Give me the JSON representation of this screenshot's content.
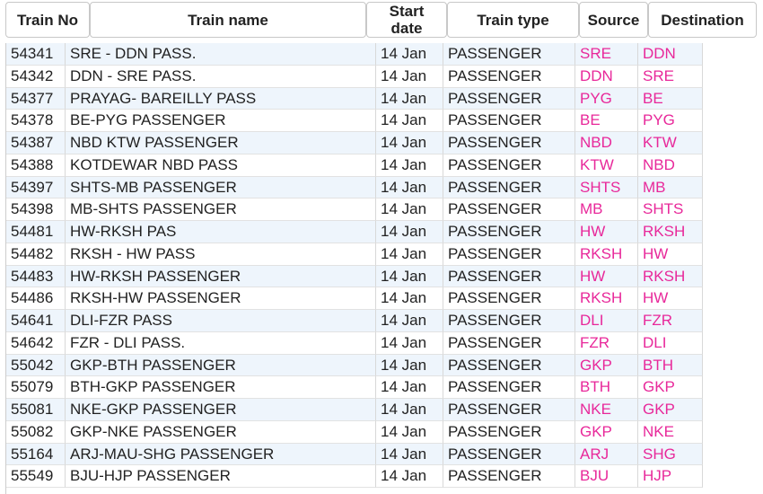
{
  "table": {
    "header": [
      "Train No",
      "Train name",
      "Start date",
      "Train type",
      "Source",
      "Destination"
    ],
    "rows": [
      [
        "54341",
        "SRE - DDN PASS.",
        "14 Jan",
        "PASSENGER",
        "SRE",
        "DDN"
      ],
      [
        "54342",
        "DDN - SRE PASS.",
        "14 Jan",
        "PASSENGER",
        "DDN",
        "SRE"
      ],
      [
        "54377",
        "PRAYAG- BAREILLY PASS",
        "14 Jan",
        "PASSENGER",
        "PYG",
        "BE"
      ],
      [
        "54378",
        "BE-PYG PASSENGER",
        "14 Jan",
        "PASSENGER",
        "BE",
        "PYG"
      ],
      [
        "54387",
        "NBD KTW PASSENGER",
        "14 Jan",
        "PASSENGER",
        "NBD",
        "KTW"
      ],
      [
        "54388",
        "KOTDEWAR NBD PASS",
        "14 Jan",
        "PASSENGER",
        "KTW",
        "NBD"
      ],
      [
        "54397",
        "SHTS-MB PASSENGER",
        "14 Jan",
        "PASSENGER",
        "SHTS",
        "MB"
      ],
      [
        "54398",
        "MB-SHTS PASSENGER",
        "14 Jan",
        "PASSENGER",
        "MB",
        "SHTS"
      ],
      [
        "54481",
        "HW-RKSH PAS",
        "14 Jan",
        "PASSENGER",
        "HW",
        "RKSH"
      ],
      [
        "54482",
        "RKSH - HW PASS",
        "14 Jan",
        "PASSENGER",
        "RKSH",
        "HW"
      ],
      [
        "54483",
        "HW-RKSH PASSENGER",
        "14 Jan",
        "PASSENGER",
        "HW",
        "RKSH"
      ],
      [
        "54486",
        "RKSH-HW PASSENGER",
        "14 Jan",
        "PASSENGER",
        "RKSH",
        "HW"
      ],
      [
        "54641",
        "DLI-FZR PASS",
        "14 Jan",
        "PASSENGER",
        "DLI",
        "FZR"
      ],
      [
        "54642",
        "FZR - DLI PASS.",
        "14 Jan",
        "PASSENGER",
        "FZR",
        "DLI"
      ],
      [
        "55042",
        "GKP-BTH PASSENGER",
        "14 Jan",
        "PASSENGER",
        "GKP",
        "BTH"
      ],
      [
        "55079",
        "BTH-GKP PASSENGER",
        "14 Jan",
        "PASSENGER",
        "BTH",
        "GKP"
      ],
      [
        "55081",
        "NKE-GKP PASSENGER",
        "14 Jan",
        "PASSENGER",
        "NKE",
        "GKP"
      ],
      [
        "55082",
        "GKP-NKE PASSENGER",
        "14 Jan",
        "PASSENGER",
        "GKP",
        "NKE"
      ],
      [
        "55164",
        "ARJ-MAU-SHG PASSENGER",
        "14 Jan",
        "PASSENGER",
        "ARJ",
        "SHG"
      ],
      [
        "55549",
        "BJU-HJP PASSENGER",
        "14 Jan",
        "PASSENGER",
        "BJU",
        "HJP"
      ]
    ]
  }
}
